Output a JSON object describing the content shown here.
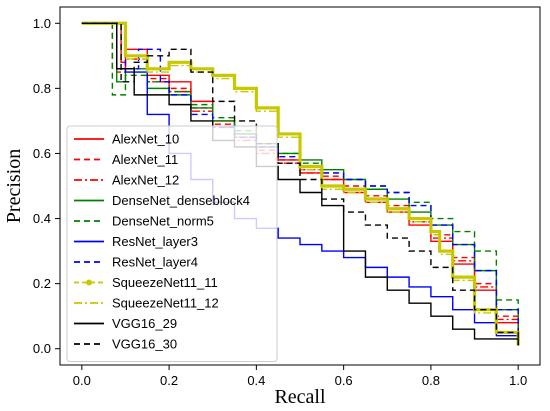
{
  "chart_data": {
    "type": "line",
    "title": "",
    "xlabel": "Recall",
    "ylabel": "Precision",
    "xlim": [
      -0.05,
      1.05
    ],
    "ylim": [
      -0.05,
      1.05
    ],
    "xticks": [
      0.0,
      0.2,
      0.4,
      0.6,
      0.8,
      1.0
    ],
    "yticks": [
      0.0,
      0.2,
      0.4,
      0.6,
      0.8,
      1.0
    ],
    "xtick_labels": [
      "0.0",
      "0.2",
      "0.4",
      "0.6",
      "0.8",
      "1.0"
    ],
    "ytick_labels": [
      "0.0",
      "0.2",
      "0.4",
      "0.6",
      "0.8",
      "1.0"
    ],
    "grid": false,
    "legend_position": "middle-left",
    "series": [
      {
        "name": "AlexNet_10",
        "color": "#ff0000",
        "dash": "solid",
        "x": [
          0.0,
          0.08,
          0.09,
          0.1,
          0.15,
          0.2,
          0.25,
          0.3,
          0.35,
          0.4,
          0.45,
          0.5,
          0.55,
          0.6,
          0.65,
          0.7,
          0.75,
          0.8,
          0.85,
          0.9,
          0.95,
          1.0
        ],
        "y": [
          1.0,
          1.0,
          0.88,
          0.92,
          0.84,
          0.82,
          0.76,
          0.7,
          0.66,
          0.62,
          0.58,
          0.54,
          0.52,
          0.48,
          0.45,
          0.42,
          0.38,
          0.33,
          0.26,
          0.18,
          0.08,
          0.01
        ]
      },
      {
        "name": "AlexNet_11",
        "color": "#ff0000",
        "dash": "dashed",
        "x": [
          0.0,
          0.06,
          0.07,
          0.1,
          0.15,
          0.2,
          0.25,
          0.3,
          0.35,
          0.4,
          0.45,
          0.5,
          0.55,
          0.6,
          0.65,
          0.7,
          0.75,
          0.8,
          0.85,
          0.9,
          0.95,
          1.0
        ],
        "y": [
          1.0,
          1.0,
          0.86,
          0.9,
          0.83,
          0.8,
          0.74,
          0.69,
          0.65,
          0.61,
          0.58,
          0.55,
          0.53,
          0.5,
          0.47,
          0.44,
          0.4,
          0.35,
          0.28,
          0.2,
          0.1,
          0.01
        ]
      },
      {
        "name": "AlexNet_12",
        "color": "#ff0000",
        "dash": "dashdot",
        "x": [
          0.0,
          0.07,
          0.08,
          0.1,
          0.15,
          0.2,
          0.25,
          0.3,
          0.35,
          0.4,
          0.45,
          0.5,
          0.55,
          0.6,
          0.65,
          0.7,
          0.75,
          0.8,
          0.85,
          0.9,
          0.95,
          1.0
        ],
        "y": [
          1.0,
          1.0,
          0.85,
          0.89,
          0.82,
          0.79,
          0.73,
          0.68,
          0.64,
          0.6,
          0.57,
          0.54,
          0.52,
          0.49,
          0.46,
          0.43,
          0.39,
          0.34,
          0.27,
          0.19,
          0.09,
          0.01
        ]
      },
      {
        "name": "DenseNet_denseblock4",
        "color": "#008000",
        "dash": "solid",
        "x": [
          0.0,
          0.07,
          0.08,
          0.1,
          0.15,
          0.2,
          0.25,
          0.3,
          0.35,
          0.4,
          0.45,
          0.5,
          0.55,
          0.6,
          0.65,
          0.7,
          0.75,
          0.8,
          0.85,
          0.9,
          0.95,
          1.0
        ],
        "y": [
          1.0,
          1.0,
          0.82,
          0.86,
          0.8,
          0.78,
          0.74,
          0.7,
          0.66,
          0.62,
          0.6,
          0.58,
          0.55,
          0.52,
          0.49,
          0.46,
          0.42,
          0.38,
          0.32,
          0.24,
          0.12,
          0.01
        ]
      },
      {
        "name": "DenseNet_norm5",
        "color": "#008000",
        "dash": "dashed",
        "x": [
          0.0,
          0.06,
          0.07,
          0.1,
          0.15,
          0.2,
          0.25,
          0.3,
          0.35,
          0.4,
          0.45,
          0.5,
          0.55,
          0.6,
          0.65,
          0.7,
          0.75,
          0.8,
          0.85,
          0.9,
          0.95,
          1.0
        ],
        "y": [
          1.0,
          1.0,
          0.78,
          0.84,
          0.82,
          0.79,
          0.75,
          0.71,
          0.67,
          0.63,
          0.6,
          0.57,
          0.54,
          0.52,
          0.5,
          0.48,
          0.45,
          0.4,
          0.36,
          0.3,
          0.15,
          0.01
        ]
      },
      {
        "name": "ResNet_layer3",
        "color": "#0000ff",
        "dash": "solid",
        "x": [
          0.0,
          0.07,
          0.08,
          0.1,
          0.15,
          0.2,
          0.25,
          0.3,
          0.35,
          0.4,
          0.45,
          0.5,
          0.55,
          0.6,
          0.65,
          0.7,
          0.75,
          0.8,
          0.85,
          0.9,
          0.95,
          1.0
        ],
        "y": [
          1.0,
          1.0,
          0.86,
          0.85,
          0.72,
          0.6,
          0.52,
          0.45,
          0.4,
          0.37,
          0.34,
          0.32,
          0.3,
          0.28,
          0.25,
          0.22,
          0.19,
          0.16,
          0.12,
          0.08,
          0.04,
          0.01
        ]
      },
      {
        "name": "ResNet_layer4",
        "color": "#0000ff",
        "dash": "dashed",
        "x": [
          0.0,
          0.09,
          0.1,
          0.13,
          0.18,
          0.2,
          0.25,
          0.3,
          0.35,
          0.4,
          0.45,
          0.5,
          0.55,
          0.6,
          0.65,
          0.7,
          0.75,
          0.8,
          0.85,
          0.9,
          0.95,
          1.0
        ],
        "y": [
          1.0,
          1.0,
          0.86,
          0.92,
          0.82,
          0.78,
          0.72,
          0.68,
          0.65,
          0.62,
          0.59,
          0.56,
          0.54,
          0.52,
          0.5,
          0.48,
          0.44,
          0.38,
          0.32,
          0.24,
          0.12,
          0.01
        ]
      },
      {
        "name": "SqueezeNet11_11",
        "color": "#c8c800",
        "dash": "solid_marker",
        "x": [
          0.0,
          0.08,
          0.1,
          0.15,
          0.2,
          0.25,
          0.3,
          0.35,
          0.4,
          0.45,
          0.5,
          0.55,
          0.6,
          0.65,
          0.7,
          0.75,
          0.8,
          0.82,
          0.85,
          0.9,
          0.95,
          1.0
        ],
        "y": [
          1.0,
          1.0,
          0.9,
          0.86,
          0.88,
          0.86,
          0.84,
          0.8,
          0.74,
          0.66,
          0.56,
          0.5,
          0.49,
          0.46,
          0.43,
          0.4,
          0.36,
          0.3,
          0.22,
          0.12,
          0.05,
          0.01
        ]
      },
      {
        "name": "SqueezeNet11_12",
        "color": "#c8c800",
        "dash": "dashdot",
        "x": [
          0.0,
          0.08,
          0.1,
          0.15,
          0.2,
          0.25,
          0.3,
          0.35,
          0.4,
          0.45,
          0.5,
          0.55,
          0.6,
          0.65,
          0.7,
          0.75,
          0.8,
          0.82,
          0.85,
          0.9,
          0.95,
          1.0
        ],
        "y": [
          1.0,
          1.0,
          0.89,
          0.85,
          0.87,
          0.85,
          0.83,
          0.79,
          0.73,
          0.65,
          0.55,
          0.49,
          0.48,
          0.45,
          0.42,
          0.39,
          0.35,
          0.29,
          0.21,
          0.11,
          0.05,
          0.01
        ]
      },
      {
        "name": "VGG16_29",
        "color": "#000000",
        "dash": "solid",
        "x": [
          0.0,
          0.07,
          0.08,
          0.12,
          0.15,
          0.2,
          0.25,
          0.3,
          0.35,
          0.4,
          0.45,
          0.5,
          0.55,
          0.6,
          0.65,
          0.7,
          0.75,
          0.8,
          0.85,
          0.9,
          0.95,
          1.0
        ],
        "y": [
          1.0,
          1.0,
          0.86,
          0.78,
          0.78,
          0.75,
          0.7,
          0.64,
          0.62,
          0.56,
          0.52,
          0.48,
          0.44,
          0.3,
          0.22,
          0.18,
          0.14,
          0.1,
          0.06,
          0.03,
          0.03,
          0.01
        ]
      },
      {
        "name": "VGG16_30",
        "color": "#000000",
        "dash": "dashed",
        "x": [
          0.0,
          0.08,
          0.09,
          0.12,
          0.15,
          0.2,
          0.25,
          0.3,
          0.35,
          0.4,
          0.45,
          0.5,
          0.55,
          0.6,
          0.65,
          0.7,
          0.75,
          0.8,
          0.85,
          0.9,
          0.95,
          1.0
        ],
        "y": [
          1.0,
          1.0,
          0.82,
          0.88,
          0.9,
          0.92,
          0.85,
          0.76,
          0.7,
          0.63,
          0.57,
          0.52,
          0.46,
          0.42,
          0.38,
          0.34,
          0.3,
          0.25,
          0.18,
          0.12,
          0.05,
          0.01
        ]
      }
    ]
  }
}
